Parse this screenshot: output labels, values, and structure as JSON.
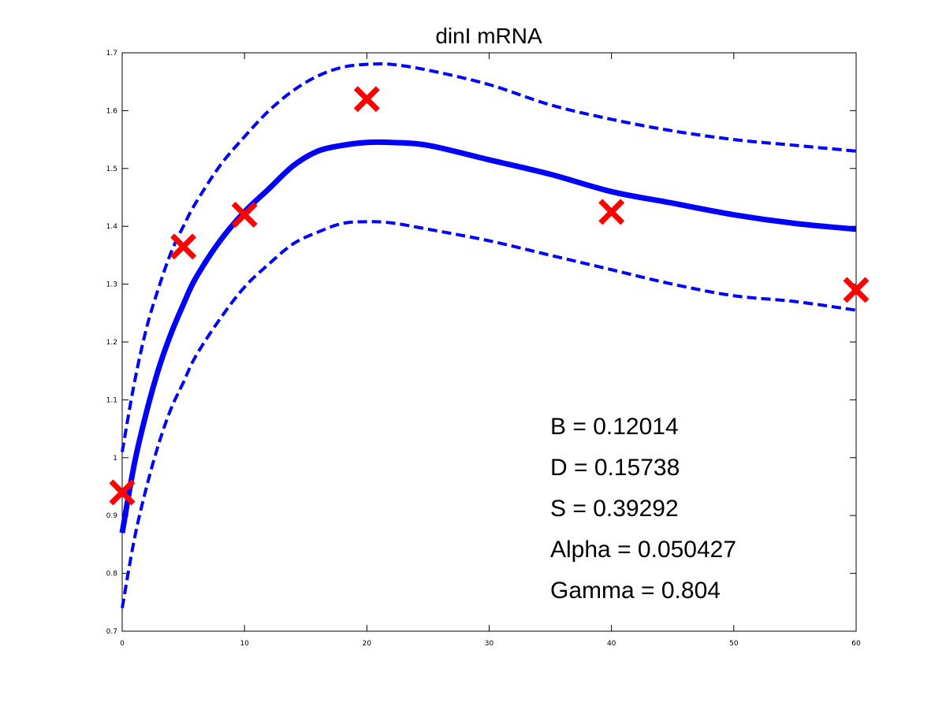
{
  "chart_data": {
    "type": "line",
    "title": "dinI mRNA",
    "xlabel": "",
    "ylabel": "",
    "xlim": [
      0,
      60
    ],
    "ylim": [
      0.7,
      1.7
    ],
    "xticks": [
      "0",
      "10",
      "20",
      "30",
      "40",
      "50",
      "60"
    ],
    "yticks": [
      "0.7",
      "0.8",
      "0.9",
      "1",
      "1.1",
      "1.2",
      "1.3",
      "1.4",
      "1.5",
      "1.6",
      "1.7"
    ],
    "grid": false,
    "colors": {
      "fit": "#0000ff",
      "points": "#ff0000"
    },
    "series": [
      {
        "style": "solid",
        "x": [
          0,
          1,
          2,
          3,
          4,
          5,
          6,
          8,
          10,
          12,
          14,
          16,
          18,
          20,
          22,
          25,
          30,
          35,
          40,
          45,
          50,
          55,
          60
        ],
        "y": [
          0.87,
          0.99,
          1.08,
          1.155,
          1.215,
          1.265,
          1.31,
          1.375,
          1.425,
          1.465,
          1.505,
          1.53,
          1.54,
          1.545,
          1.545,
          1.54,
          1.515,
          1.49,
          1.46,
          1.44,
          1.42,
          1.405,
          1.395
        ]
      },
      {
        "style": "dashed",
        "x": [
          0,
          1,
          2,
          3,
          4,
          5,
          6,
          8,
          10,
          12,
          14,
          16,
          18,
          20,
          22,
          25,
          30,
          35,
          40,
          45,
          50,
          55,
          60
        ],
        "y": [
          1.01,
          1.13,
          1.225,
          1.295,
          1.355,
          1.4,
          1.44,
          1.505,
          1.555,
          1.6,
          1.635,
          1.66,
          1.675,
          1.68,
          1.68,
          1.67,
          1.645,
          1.61,
          1.585,
          1.565,
          1.55,
          1.54,
          1.53
        ]
      },
      {
        "style": "dashed",
        "x": [
          0,
          1,
          2,
          3,
          4,
          5,
          6,
          8,
          10,
          12,
          14,
          16,
          18,
          20,
          22,
          25,
          30,
          35,
          40,
          45,
          50,
          55,
          60
        ],
        "y": [
          0.74,
          0.86,
          0.95,
          1.025,
          1.085,
          1.13,
          1.175,
          1.24,
          1.295,
          1.335,
          1.37,
          1.39,
          1.405,
          1.408,
          1.406,
          1.395,
          1.375,
          1.35,
          1.325,
          1.3,
          1.28,
          1.27,
          1.255
        ]
      },
      {
        "style": "markers",
        "x": [
          0,
          5,
          10,
          20,
          40,
          60
        ],
        "y": [
          0.94,
          1.365,
          1.42,
          1.62,
          1.425,
          1.29
        ]
      }
    ],
    "annotations": [
      "B = 0.12014",
      "D = 0.15738",
      "S = 0.39292",
      "Alpha = 0.050427",
      "Gamma = 0.804"
    ]
  }
}
